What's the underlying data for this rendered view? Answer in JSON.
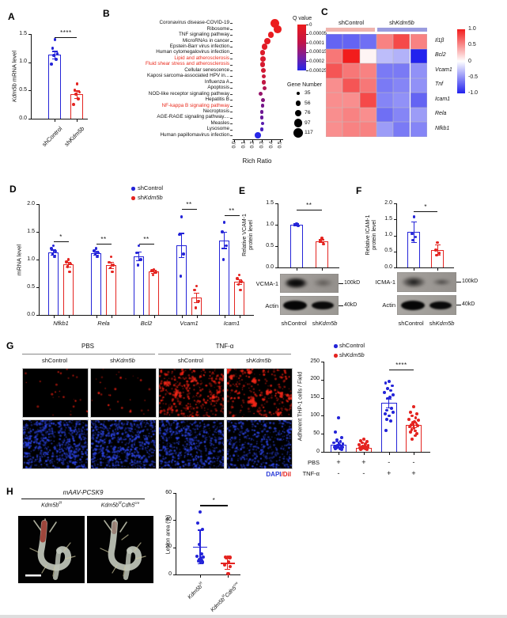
{
  "colors": {
    "blue": "#2424d8",
    "red": "#e42420",
    "label_red": "#ea2a1c",
    "heat_pink": "#efb4ae",
    "heat_periwinkle": "#9a9cdf",
    "dapi_blue": "#2a3bd8",
    "dil_red": "#e42420"
  },
  "panel_a": {
    "letter": "A",
    "ylabel": {
      "it": "Kdm5b",
      "rest": " mRNA level"
    },
    "ymax": 1.5,
    "yticks": [
      "0.0",
      "0.5",
      "1.0",
      "1.5"
    ],
    "sig": "****",
    "groups": [
      {
        "name": "shControl",
        "pre": "shControl",
        "it": "",
        "color": "blue",
        "bar": 1.13,
        "err": 0.07,
        "dots": [
          1.4,
          1.25,
          1.15,
          1.12,
          1.05,
          0.97
        ]
      },
      {
        "name": "shKdm5b",
        "pre": "sh",
        "it": "Kdm5b",
        "color": "red",
        "bar": 0.43,
        "err": 0.07,
        "dots": [
          0.62,
          0.5,
          0.47,
          0.44,
          0.35,
          0.25
        ]
      }
    ]
  },
  "panel_b": {
    "letter": "B",
    "xlabel": "Rich Ratio",
    "xticks": [
      "0.0",
      "0.1",
      "0.2",
      "0.3",
      "0.4",
      "0.5"
    ],
    "qvalue_title": "Q value",
    "qticks": [
      "0",
      "0.00005",
      "0.0001",
      "0.00015",
      "0.0002",
      "0.00025"
    ],
    "gene_title": "Gene Number",
    "gene_sizes": [
      35,
      56,
      76,
      97,
      117
    ],
    "rows": [
      {
        "label": "Coronavirus disease-COVID-19",
        "rr": 0.44,
        "n": 117,
        "q": 0.0
      },
      {
        "label": "Ribosome",
        "rr": 0.47,
        "n": 100,
        "q": 0.01
      },
      {
        "label": "TNF signaling pathway",
        "rr": 0.4,
        "n": 78,
        "q": 0.02
      },
      {
        "label": "MicroRNAs in cancer",
        "rr": 0.36,
        "n": 80,
        "q": 0.04
      },
      {
        "label": "Epstein-Barr virus infection",
        "rr": 0.33,
        "n": 76,
        "q": 0.05
      },
      {
        "label": "Human cytomegalovirus infection",
        "rr": 0.31,
        "n": 66,
        "q": 0.07
      },
      {
        "label": "Lipid and atherosclerosis",
        "rr": 0.315,
        "n": 70,
        "q": 0.08,
        "hl": true
      },
      {
        "label": "Fluid shear stress and atherosclerosis",
        "rr": 0.31,
        "n": 62,
        "q": 0.1,
        "hl": true
      },
      {
        "label": "Cellular senescence",
        "rr": 0.32,
        "n": 56,
        "q": 0.12
      },
      {
        "label": "Kaposi sarcoma-associated HPV in...",
        "rr": 0.32,
        "n": 50,
        "q": 0.16
      },
      {
        "label": "Influenza A",
        "rr": 0.32,
        "n": 52,
        "q": 0.2
      },
      {
        "label": "Apoptosis",
        "rr": 0.33,
        "n": 48,
        "q": 0.28
      },
      {
        "label": "NOD-like receptor signaling pathway",
        "rr": 0.29,
        "n": 48,
        "q": 0.4
      },
      {
        "label": "Hepatitis B",
        "rr": 0.31,
        "n": 46,
        "q": 0.48
      },
      {
        "label": "NF-kappa B signaling pathway",
        "rr": 0.31,
        "n": 42,
        "q": 0.56,
        "hl": true
      },
      {
        "label": "Necroptosis",
        "rr": 0.3,
        "n": 44,
        "q": 0.6
      },
      {
        "label": "AGE-RAGE signaling pathway....",
        "rr": 0.3,
        "n": 42,
        "q": 0.64
      },
      {
        "label": "Measles",
        "rr": 0.31,
        "n": 40,
        "q": 0.72
      },
      {
        "label": "Lysosome",
        "rr": 0.3,
        "n": 42,
        "q": 0.8
      },
      {
        "label": "Human papillomavirus infection",
        "rr": 0.26,
        "n": 76,
        "q": 1.0
      }
    ]
  },
  "panel_c": {
    "letter": "C",
    "col_groups": [
      {
        "pre": "shControl",
        "it": ""
      },
      {
        "pre": "sh",
        "it": "Kdm5b"
      }
    ],
    "rows": [
      "Il1β",
      "Bcl2",
      "Vcam1",
      "Tnf",
      "Icam1",
      "Rela",
      "Nfkb1"
    ],
    "colorbar_ticks": [
      "1.0",
      "0.5",
      "0",
      "-0.5",
      "-1.0"
    ],
    "values": [
      [
        -0.7,
        -0.7,
        -0.65,
        0.55,
        0.8,
        0.55
      ],
      [
        0.6,
        1.0,
        0.05,
        -0.3,
        -0.35,
        -1.0
      ],
      [
        0.75,
        0.6,
        0.55,
        -0.6,
        -0.6,
        -0.5
      ],
      [
        0.5,
        0.75,
        0.6,
        -0.6,
        -0.55,
        -0.5
      ],
      [
        0.5,
        0.5,
        0.8,
        -0.55,
        -0.5,
        -0.7
      ],
      [
        0.5,
        0.55,
        0.5,
        -0.65,
        -0.55,
        -0.45
      ],
      [
        0.5,
        0.55,
        0.55,
        -0.45,
        -0.6,
        -0.55
      ]
    ]
  },
  "panel_d": {
    "letter": "D",
    "ylabel": "mRNA level",
    "ymax": 2.0,
    "yticks": [
      "0.0",
      "0.5",
      "1.0",
      "1.5",
      "2.0"
    ],
    "legend": [
      {
        "pre": "shControl",
        "it": "",
        "color": "blue"
      },
      {
        "pre": "sh",
        "it": "Kdm5b",
        "color": "red"
      }
    ],
    "categories": [
      "Nfkb1",
      "Rela",
      "Bcl2",
      "Vcam1",
      "Icam1"
    ],
    "sig": [
      "*",
      "**",
      "**",
      "**",
      "**"
    ],
    "sig_v": [
      1.33,
      1.28,
      1.28,
      1.92,
      1.8
    ],
    "blue": {
      "bars": [
        1.13,
        1.12,
        1.06,
        1.26,
        1.35
      ],
      "errs": [
        0.05,
        0.04,
        0.08,
        0.22,
        0.15
      ],
      "dots": [
        [
          1.25,
          1.2,
          1.15,
          1.1,
          1.05
        ],
        [
          1.2,
          1.16,
          1.12,
          1.1,
          1.05
        ],
        [
          1.25,
          1.12,
          1.0,
          0.9
        ],
        [
          1.77,
          1.45,
          1.1,
          0.7
        ],
        [
          1.67,
          1.5,
          1.25,
          1.0
        ]
      ]
    },
    "red": {
      "bars": [
        0.91,
        0.9,
        0.78,
        0.31,
        0.6
      ],
      "errs": [
        0.05,
        0.06,
        0.03,
        0.09,
        0.05
      ],
      "dots": [
        [
          1.0,
          0.96,
          0.92,
          0.87,
          0.78
        ],
        [
          1.05,
          0.95,
          0.9,
          0.85,
          0.78
        ],
        [
          0.82,
          0.8,
          0.77,
          0.72
        ],
        [
          0.52,
          0.45,
          0.25,
          0.13
        ],
        [
          0.72,
          0.66,
          0.6,
          0.55,
          0.45
        ]
      ]
    }
  },
  "panel_e": {
    "letter": "E",
    "ylabel1": "Relative VCAM-1",
    "ylabel2": "protein level",
    "ymax": 1.5,
    "yticks": [
      "0.0",
      "0.5",
      "1.0",
      "1.5"
    ],
    "sig": "**",
    "groups": [
      {
        "color": "blue",
        "bar": 1.0,
        "err": 0.03,
        "dots": [
          1.03,
          1.0,
          0.97
        ]
      },
      {
        "color": "red",
        "bar": 0.62,
        "err": 0.04,
        "dots": [
          0.68,
          0.62,
          0.55
        ]
      }
    ],
    "blot1_label": "VCMA-1",
    "blot2_label": "Actin",
    "kd1": "100kD",
    "kd2": "40kD",
    "xlabels": [
      {
        "pre": "shControl",
        "it": ""
      },
      {
        "pre": "sh",
        "it": "Kdm5b"
      }
    ]
  },
  "panel_f": {
    "letter": "F",
    "ylabel1": "Relative ICAM-1",
    "ylabel2": "protein level",
    "ymax": 2.0,
    "yticks": [
      "0.0",
      "0.5",
      "1.0",
      "1.5",
      "2.0"
    ],
    "sig": "*",
    "groups": [
      {
        "color": "blue",
        "bar": 1.1,
        "err": 0.33,
        "dots": [
          1.58,
          1.05,
          0.95,
          0.85
        ]
      },
      {
        "color": "red",
        "bar": 0.55,
        "err": 0.17,
        "dots": [
          0.78,
          0.55,
          0.45,
          0.38
        ]
      }
    ],
    "blot1_label": "ICMA-1",
    "blot2_label": "Actin",
    "kd1": "100kD",
    "kd2": "40kD",
    "xlabels": [
      {
        "pre": "shControl",
        "it": ""
      },
      {
        "pre": "sh",
        "it": "Kdm5b"
      }
    ]
  },
  "panel_g": {
    "letter": "G",
    "cond_headers": [
      "PBS",
      "TNF-α"
    ],
    "col_labels": [
      {
        "pre": "shControl",
        "it": ""
      },
      {
        "pre": "sh",
        "it": "Kdm5b"
      },
      {
        "pre": "shControl",
        "it": ""
      },
      {
        "pre": "sh",
        "it": "Kdm5b"
      }
    ],
    "caption": {
      "dapi": "DAPI",
      "slash": "/",
      "dil": "DiI"
    },
    "images": [
      {
        "stain": "dil",
        "density": 26,
        "clusters": 0
      },
      {
        "stain": "dil",
        "density": 30,
        "clusters": 0
      },
      {
        "stain": "dil",
        "density": 380,
        "clusters": 4
      },
      {
        "stain": "dil",
        "density": 230,
        "clusters": 12
      },
      {
        "stain": "dapi",
        "density": 650,
        "clusters": 0
      },
      {
        "stain": "dapi",
        "density": 650,
        "clusters": 0
      },
      {
        "stain": "dapi",
        "density": 600,
        "clusters": 0
      },
      {
        "stain": "dapi",
        "density": 470,
        "clusters": 0
      }
    ],
    "chart": {
      "ylabel": "Adherent THP-1 cells / Field",
      "ymax": 250,
      "yticks": [
        "0",
        "50",
        "100",
        "150",
        "200",
        "250"
      ],
      "sig": "****",
      "legend": [
        {
          "pre": "shControl",
          "it": "",
          "color": "blue"
        },
        {
          "pre": "sh",
          "it": "Kdm5b",
          "color": "red"
        }
      ],
      "groups": [
        {
          "color": "blue",
          "bar": 20,
          "err": 8,
          "dots": [
            95,
            55,
            40,
            33,
            28,
            25,
            22,
            20,
            18,
            16,
            15,
            14,
            13,
            12,
            10,
            9,
            8,
            7
          ]
        },
        {
          "color": "red",
          "bar": 12,
          "err": 4,
          "dots": [
            35,
            30,
            28,
            25,
            22,
            20,
            18,
            16,
            15,
            14,
            13,
            12,
            11,
            10,
            9,
            8,
            7,
            6
          ]
        },
        {
          "color": "blue",
          "bar": 135,
          "err": 13,
          "dots": [
            195,
            190,
            183,
            175,
            170,
            165,
            158,
            152,
            148,
            120,
            115,
            110,
            105,
            100,
            90,
            85,
            60
          ]
        },
        {
          "color": "red",
          "bar": 75,
          "err": 8,
          "dots": [
            125,
            110,
            105,
            100,
            95,
            90,
            87,
            84,
            81,
            78,
            75,
            72,
            69,
            66,
            62,
            58,
            54,
            50,
            45,
            35
          ]
        }
      ],
      "design_rows": [
        {
          "label": "PBS",
          "vals": [
            "+",
            "+",
            "-",
            "-"
          ]
        },
        {
          "label": "TNF-α",
          "vals": [
            "-",
            "-",
            "+",
            "+"
          ]
        }
      ]
    }
  },
  "panel_h": {
    "letter": "H",
    "header": "mAAV-PCSK9",
    "img_labels": [
      {
        "it": "Kdm5b",
        "sup": "f/f",
        "it2": "",
        "sup2": ""
      },
      {
        "it": "Kdm5b",
        "sup": "f/f",
        "it2": "Cdh5",
        "sup2": "cre"
      }
    ],
    "chart": {
      "ylabel": "Lesion area (%)",
      "ymax": 60,
      "yticks": [
        "0",
        "20",
        "40",
        "60"
      ],
      "sig": "*",
      "groups": [
        {
          "color": "blue",
          "mean": 20.5,
          "err": 12.5,
          "dots": [
            46,
            38,
            33,
            22,
            15,
            13.5,
            13,
            12,
            11,
            10.5,
            10,
            9
          ]
        },
        {
          "color": "red",
          "mean": 8.5,
          "err": 4.5,
          "dots": [
            13,
            13,
            12.5,
            12,
            9,
            7,
            6,
            0.5
          ]
        }
      ]
    }
  }
}
